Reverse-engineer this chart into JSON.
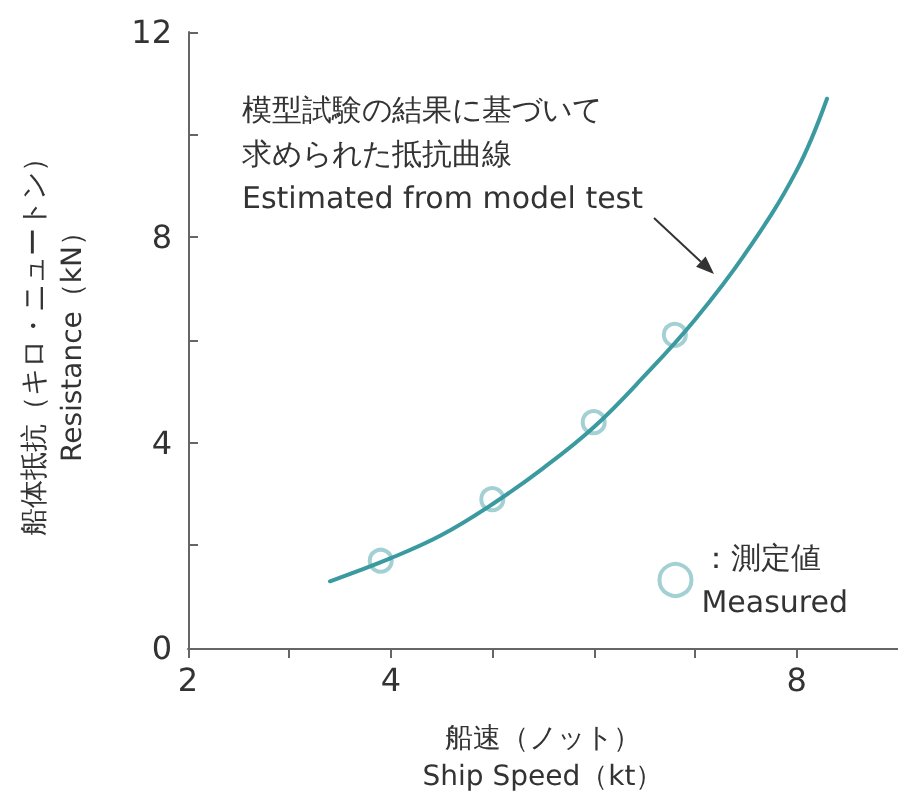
{
  "chart_data": {
    "type": "line",
    "xlabel": "船速（ノット）\nShip Speed（kt）",
    "ylabel": "船体抵抗（キロ・ニュートン）\nResistance（kN）",
    "xlim": [
      2,
      9
    ],
    "xticks": [
      2,
      {
        "value": 3,
        "label": null
      },
      4,
      {
        "value": 5,
        "label": null
      },
      {
        "value": 6,
        "label": null
      },
      {
        "value": 7,
        "label": null
      },
      8
    ],
    "ylim": [
      0,
      12
    ],
    "yticks": [
      0,
      {
        "value": 2,
        "label": null
      },
      4,
      {
        "value": 6,
        "label": null
      },
      8,
      {
        "value": 10,
        "label": null
      },
      12
    ],
    "grid": false,
    "legend": "bottom right",
    "annotations": [
      "模型試験の結果に基づいて求められた抵抗曲線",
      "Estimated from model test"
    ],
    "series": [
      {
        "color": "#3a9aa0",
        "marker": "none",
        "x": [
          3.4,
          4,
          4.5,
          5,
          5.5,
          6,
          6.5,
          7,
          7.5,
          8,
          8.3
        ],
        "values": [
          1.3,
          1.75,
          2.2,
          2.8,
          3.5,
          4.3,
          5.3,
          6.4,
          7.7,
          9.3,
          10.7
        ]
      },
      {
        "type": "scatter",
        "name": "：測定値\nMeasured",
        "color": "#8cc4c8",
        "marker": "circle",
        "x": [
          3.9,
          5,
          6,
          6.8
        ],
        "values": [
          1.7,
          2.9,
          4.4,
          6.1
        ]
      }
    ]
  }
}
